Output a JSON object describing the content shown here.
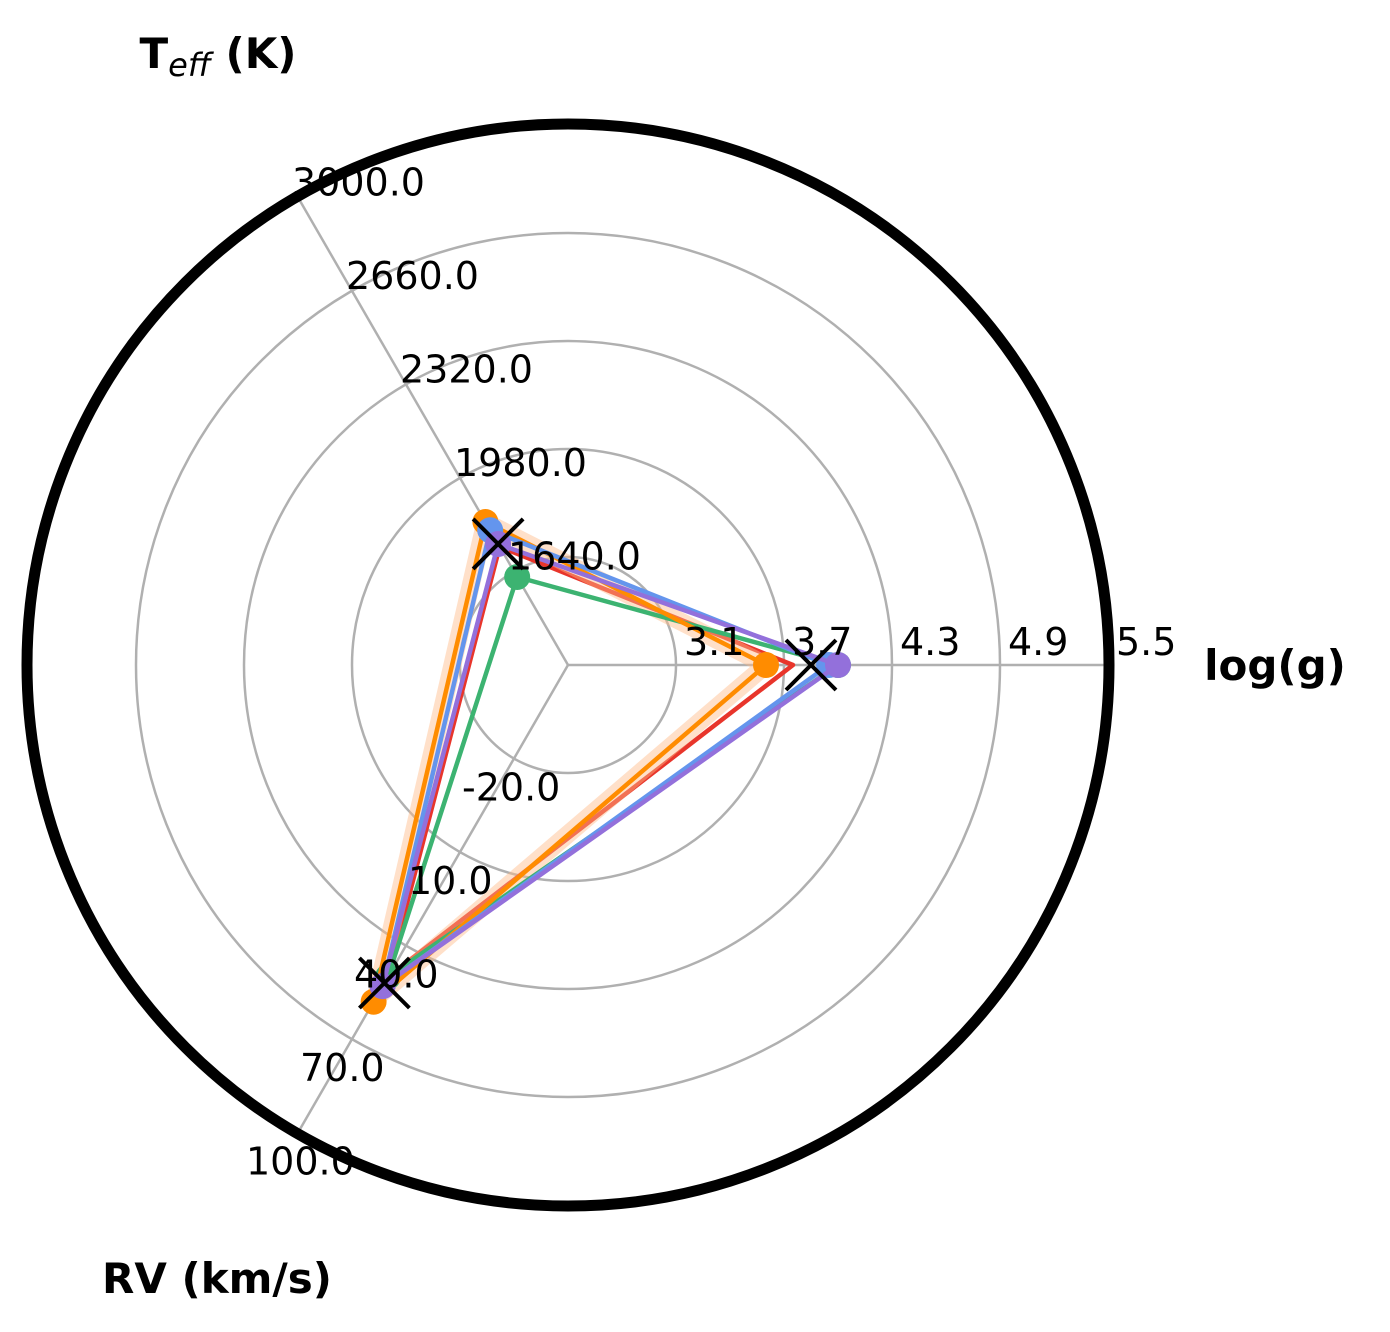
{
  "chart_data": {
    "type": "radar",
    "axes": [
      {
        "key": "teff",
        "title_main": "T",
        "title_sub": "eff",
        "title_rest": " (K)",
        "min": 1300.0,
        "max": 3000.0,
        "ticks": [
          "1640.0",
          "1980.0",
          "2320.0",
          "2660.0",
          "3000.0"
        ]
      },
      {
        "key": "logg",
        "title": "log(g)",
        "min": 2.5,
        "max": 5.5,
        "ticks": [
          "3.1",
          "3.7",
          "4.3",
          "4.9",
          "5.5"
        ]
      },
      {
        "key": "rv",
        "title": "RV (km/s)",
        "min": -50.0,
        "max": 100.0,
        "ticks": [
          "-20.0",
          "10.0",
          "40.0",
          "70.0",
          "100.0"
        ]
      }
    ],
    "grid": true,
    "series": [
      {
        "color": "#e8352b",
        "values": [
          1730,
          3.75,
          50
        ],
        "marker": "none"
      },
      {
        "color": "#ffbb88",
        "values": [
          1820,
          3.6,
          57
        ],
        "marker": "none",
        "band": true
      },
      {
        "color": "#3cb371",
        "values": [
          1620,
          4.0,
          50
        ],
        "marker": "circle"
      },
      {
        "color": "#ff8c00",
        "values": [
          1820,
          3.6,
          58
        ],
        "marker": "circle"
      },
      {
        "color": "#6495ed",
        "values": [
          1790,
          3.95,
          53
        ],
        "marker": "circle"
      },
      {
        "color": "#9370db",
        "values": [
          1740,
          4.0,
          53
        ],
        "marker": "circle"
      }
    ],
    "reference": {
      "marker": "x",
      "color": "#000000",
      "values": [
        1740,
        3.85,
        52
      ]
    }
  }
}
